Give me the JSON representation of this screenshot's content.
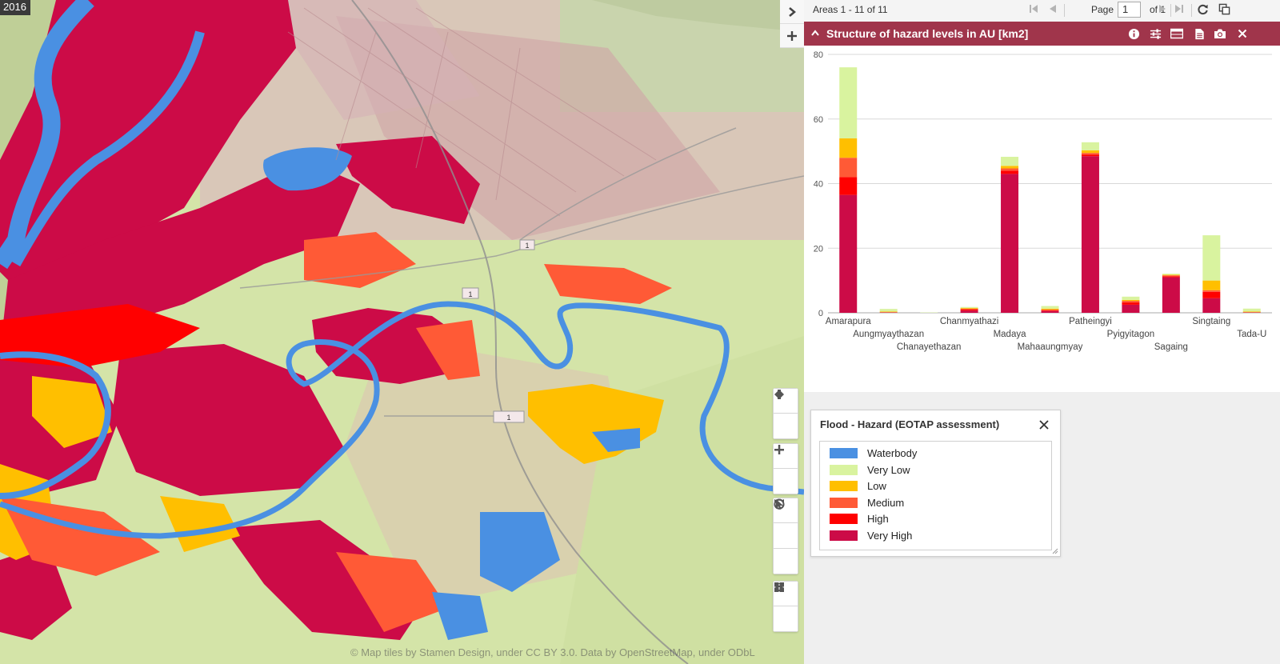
{
  "map": {
    "year": "2016",
    "attribution": "© Map tiles by Stamen Design, under CC BY 3.0. Data by OpenStreetMap, under ODbL",
    "road_labels": [
      "1",
      "1",
      "1"
    ]
  },
  "side_buttons": [
    "expand-panel",
    "add-panel"
  ],
  "pager": {
    "areas": "Areas 1 - 11 of 11",
    "page_label": "Page",
    "page_value": "1",
    "of_label": "of 1"
  },
  "chart_panel": {
    "title": "Structure of hazard levels in AU [km2]"
  },
  "chart_data": {
    "type": "bar",
    "stacked": true,
    "categories": [
      "Amarapura",
      "Aungmyaythazan",
      "Chanayethazan",
      "Chanmyathazi",
      "Madaya",
      "Mahaaungmyay",
      "Patheingyi",
      "Pyigyitagon",
      "Sagaing",
      "Singtaing",
      "Tada-U"
    ],
    "series": [
      {
        "name": "Very High",
        "color": "#cc0b47",
        "values": [
          36.5,
          0.1,
          0,
          0.7,
          43,
          0.5,
          48.5,
          2.5,
          11,
          4.5,
          0.1
        ]
      },
      {
        "name": "High",
        "color": "#ff0000",
        "values": [
          5.5,
          0,
          0,
          0.3,
          1,
          0.2,
          0.5,
          0.7,
          0.3,
          2,
          0
        ]
      },
      {
        "name": "Medium",
        "color": "#ff5a36",
        "values": [
          6,
          0.1,
          0,
          0.3,
          0.7,
          0.3,
          0.5,
          0.5,
          0.3,
          0.5,
          0.1
        ]
      },
      {
        "name": "Low",
        "color": "#ffbf00",
        "values": [
          6,
          0.2,
          0,
          0.2,
          0.8,
          0.3,
          0.8,
          0.3,
          0.2,
          3,
          0.2
        ]
      },
      {
        "name": "Very Low",
        "color": "#d9f39f",
        "values": [
          22,
          0.8,
          0.1,
          0.3,
          2.8,
          0.8,
          2.5,
          1,
          0.3,
          14,
          0.9
        ]
      }
    ],
    "ylim": [
      0,
      80
    ],
    "yticks": [
      0,
      20,
      40,
      60,
      80
    ],
    "grid": true
  },
  "legend": {
    "title": "Flood - Hazard (EOTAP assessment)",
    "items": [
      {
        "label": "Waterbody",
        "color": "#4a90e2"
      },
      {
        "label": "Very Low",
        "color": "#d9f39f"
      },
      {
        "label": "Low",
        "color": "#ffbf00"
      },
      {
        "label": "Medium",
        "color": "#ff5a36"
      },
      {
        "label": "High",
        "color": "#ff0000"
      },
      {
        "label": "Very High",
        "color": "#cc0b47"
      }
    ]
  }
}
